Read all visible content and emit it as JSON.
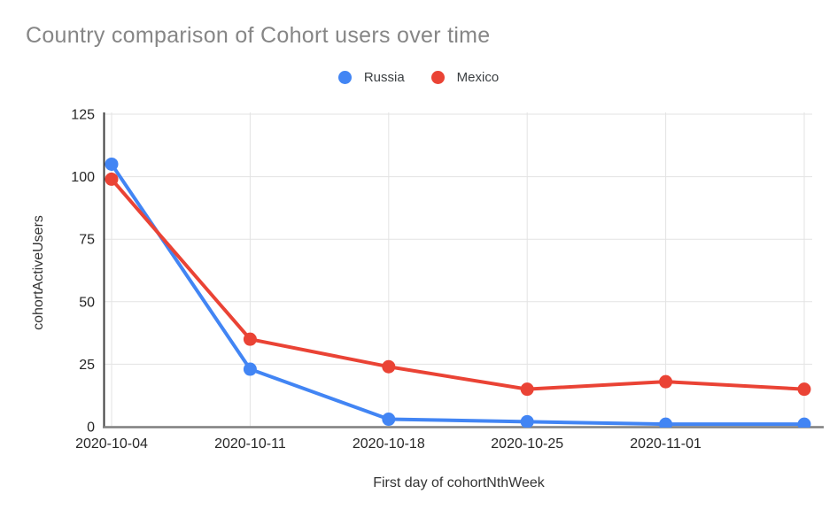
{
  "chart_data": {
    "type": "line",
    "title": "Country comparison of Cohort users over time",
    "xlabel": "First day of cohortNthWeek",
    "ylabel": "cohortActiveUsers",
    "categories": [
      "2020-10-04",
      "2020-10-11",
      "2020-10-18",
      "2020-10-25",
      "2020-11-01",
      ""
    ],
    "series": [
      {
        "name": "Russia",
        "color": "#4285F4",
        "values": [
          105,
          23,
          3,
          2,
          1,
          1
        ]
      },
      {
        "name": "Mexico",
        "color": "#EA4335",
        "values": [
          99,
          35,
          24,
          15,
          18,
          15
        ]
      }
    ],
    "ylim": [
      0,
      125
    ],
    "y_ticks": [
      0,
      25,
      50,
      75,
      100,
      125
    ],
    "grid": true,
    "legend_position": "top",
    "colors": {
      "background": "#ffffff",
      "title_text": "#868686",
      "tick_text": "#262626",
      "axis_title_text": "#333333",
      "gridline": "#e3e3e3",
      "y_axis_line": "#3c3c3c",
      "x_axis_line": "#7f7f7f"
    }
  }
}
